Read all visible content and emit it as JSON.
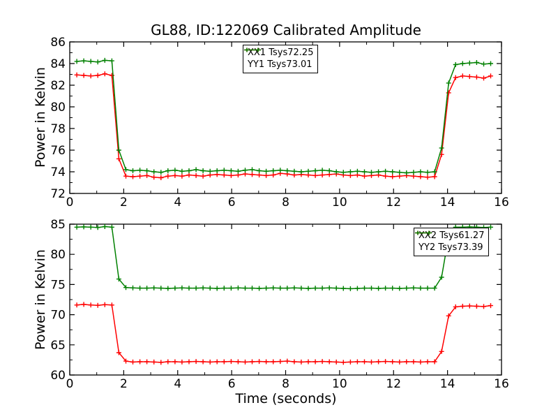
{
  "figure": {
    "title": "GL88, ID:122069 Calibrated Amplitude",
    "background": "#ffffff",
    "axis_color": "#000000"
  },
  "chart_data": [
    {
      "type": "line",
      "title": "GL88, ID:122069 Calibrated Amplitude",
      "xlabel": "",
      "ylabel": "Power in Kelvin",
      "xlim": [
        0,
        16
      ],
      "ylim": [
        72,
        86
      ],
      "xticks": [
        0,
        2,
        4,
        6,
        8,
        10,
        12,
        14,
        16
      ],
      "yticks": [
        72,
        74,
        76,
        78,
        80,
        82,
        84,
        86
      ],
      "x_minor_step": 1,
      "y_minor_step": 1,
      "grid": false,
      "legend_position": "upper center",
      "x": [
        0.26,
        0.52,
        0.78,
        1.04,
        1.3,
        1.56,
        1.82,
        2.08,
        2.34,
        2.6,
        2.86,
        3.12,
        3.38,
        3.64,
        3.9,
        4.16,
        4.42,
        4.68,
        4.94,
        5.2,
        5.46,
        5.72,
        5.98,
        6.24,
        6.5,
        6.76,
        7.02,
        7.28,
        7.54,
        7.8,
        8.06,
        8.32,
        8.58,
        8.84,
        9.1,
        9.36,
        9.62,
        9.88,
        10.14,
        10.4,
        10.66,
        10.92,
        11.18,
        11.44,
        11.7,
        11.96,
        12.22,
        12.48,
        12.74,
        13.0,
        13.26,
        13.52,
        13.78,
        14.04,
        14.3,
        14.56,
        14.82,
        15.08,
        15.34,
        15.6
      ],
      "series": [
        {
          "name": "XX1 Tsys72.25",
          "color": "#ff0000",
          "marker": "plus",
          "values": [
            82.95,
            82.9,
            82.85,
            82.9,
            83.05,
            82.9,
            75.2,
            73.6,
            73.55,
            73.6,
            73.65,
            73.5,
            73.45,
            73.6,
            73.65,
            73.6,
            73.7,
            73.65,
            73.6,
            73.7,
            73.75,
            73.7,
            73.65,
            73.7,
            73.8,
            73.75,
            73.7,
            73.65,
            73.7,
            73.85,
            73.8,
            73.7,
            73.75,
            73.7,
            73.65,
            73.7,
            73.75,
            73.8,
            73.7,
            73.65,
            73.7,
            73.6,
            73.65,
            73.7,
            73.6,
            73.55,
            73.6,
            73.65,
            73.6,
            73.55,
            73.5,
            73.55,
            75.6,
            81.3,
            82.7,
            82.85,
            82.8,
            82.75,
            82.65,
            82.85
          ]
        },
        {
          "name": "YY1 Tsys73.01",
          "color": "#008000",
          "marker": "plus",
          "values": [
            84.2,
            84.25,
            84.2,
            84.15,
            84.3,
            84.25,
            76.0,
            74.2,
            74.1,
            74.15,
            74.1,
            74.0,
            73.95,
            74.1,
            74.15,
            74.05,
            74.1,
            74.2,
            74.1,
            74.05,
            74.1,
            74.15,
            74.1,
            74.05,
            74.15,
            74.2,
            74.1,
            74.05,
            74.1,
            74.15,
            74.1,
            74.05,
            74.0,
            74.05,
            74.1,
            74.15,
            74.1,
            74.0,
            73.95,
            74.0,
            74.05,
            74.0,
            73.95,
            74.0,
            74.05,
            74.0,
            73.95,
            73.9,
            73.95,
            74.0,
            73.95,
            74.0,
            76.2,
            82.2,
            83.9,
            84.0,
            84.05,
            84.1,
            83.95,
            84.0
          ]
        }
      ]
    },
    {
      "type": "line",
      "title": "",
      "xlabel": "Time (seconds)",
      "ylabel": "Power in Kelvin",
      "xlim": [
        0,
        16
      ],
      "ylim": [
        60,
        85
      ],
      "xticks": [
        0,
        2,
        4,
        6,
        8,
        10,
        12,
        14,
        16
      ],
      "yticks": [
        60,
        65,
        70,
        75,
        80,
        85
      ],
      "x_minor_step": 1,
      "y_minor_step": 2.5,
      "grid": false,
      "legend_position": "upper right",
      "x": [
        0.26,
        0.52,
        0.78,
        1.04,
        1.3,
        1.56,
        1.82,
        2.08,
        2.34,
        2.6,
        2.86,
        3.12,
        3.38,
        3.64,
        3.9,
        4.16,
        4.42,
        4.68,
        4.94,
        5.2,
        5.46,
        5.72,
        5.98,
        6.24,
        6.5,
        6.76,
        7.02,
        7.28,
        7.54,
        7.8,
        8.06,
        8.32,
        8.58,
        8.84,
        9.1,
        9.36,
        9.62,
        9.88,
        10.14,
        10.4,
        10.66,
        10.92,
        11.18,
        11.44,
        11.7,
        11.96,
        12.22,
        12.48,
        12.74,
        13.0,
        13.26,
        13.52,
        13.78,
        14.04,
        14.3,
        14.56,
        14.82,
        15.08,
        15.34,
        15.6
      ],
      "series": [
        {
          "name": "XX2 Tsys61.27",
          "color": "#ff0000",
          "marker": "plus",
          "values": [
            71.6,
            71.7,
            71.6,
            71.55,
            71.65,
            71.6,
            63.7,
            62.3,
            62.15,
            62.2,
            62.2,
            62.15,
            62.1,
            62.2,
            62.2,
            62.15,
            62.2,
            62.25,
            62.2,
            62.15,
            62.2,
            62.2,
            62.25,
            62.2,
            62.15,
            62.2,
            62.25,
            62.2,
            62.2,
            62.25,
            62.3,
            62.2,
            62.15,
            62.2,
            62.2,
            62.25,
            62.2,
            62.15,
            62.1,
            62.15,
            62.2,
            62.2,
            62.15,
            62.2,
            62.25,
            62.2,
            62.15,
            62.2,
            62.2,
            62.15,
            62.2,
            62.2,
            63.9,
            69.8,
            71.3,
            71.4,
            71.45,
            71.4,
            71.35,
            71.5
          ]
        },
        {
          "name": "YY2 Tsys73.39",
          "color": "#008000",
          "marker": "plus",
          "values": [
            84.5,
            84.55,
            84.5,
            84.45,
            84.6,
            84.5,
            75.9,
            74.5,
            74.45,
            74.4,
            74.4,
            74.45,
            74.4,
            74.35,
            74.4,
            74.45,
            74.4,
            74.4,
            74.45,
            74.4,
            74.35,
            74.4,
            74.4,
            74.45,
            74.4,
            74.4,
            74.35,
            74.4,
            74.45,
            74.4,
            74.4,
            74.45,
            74.4,
            74.35,
            74.4,
            74.4,
            74.45,
            74.4,
            74.35,
            74.3,
            74.35,
            74.4,
            74.4,
            74.35,
            74.4,
            74.4,
            74.35,
            74.4,
            74.45,
            74.4,
            74.4,
            74.4,
            76.2,
            83.0,
            84.5,
            84.5,
            84.55,
            84.5,
            84.45,
            84.5
          ]
        }
      ]
    }
  ]
}
